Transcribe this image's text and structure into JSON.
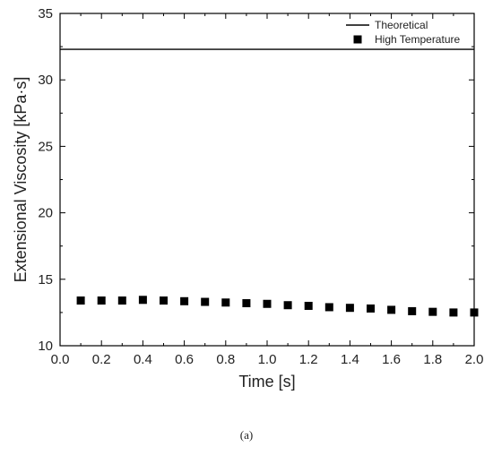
{
  "chart_data": {
    "type": "scatter",
    "xlabel": "Time [s]",
    "ylabel": "Extensional Viscosity [kPa·s]",
    "xlim": [
      0.0,
      2.0
    ],
    "ylim": [
      10,
      35
    ],
    "x_ticks": [
      "0.0",
      "0.2",
      "0.4",
      "0.6",
      "0.8",
      "1.0",
      "1.2",
      "1.4",
      "1.6",
      "1.8",
      "2.0"
    ],
    "y_ticks": [
      "10",
      "15",
      "20",
      "25",
      "30",
      "35"
    ],
    "grid": false,
    "legend_position": "top-right",
    "series": [
      {
        "name": "Theoretical",
        "type": "line",
        "color": "#000000",
        "x": [
          0.0,
          2.0
        ],
        "y": [
          32.3,
          32.3
        ]
      },
      {
        "name": "High Temperature",
        "type": "scatter",
        "marker": "square",
        "color": "#000000",
        "x": [
          0.1,
          0.2,
          0.3,
          0.4,
          0.5,
          0.6,
          0.7,
          0.8,
          0.9,
          1.0,
          1.1,
          1.2,
          1.3,
          1.4,
          1.5,
          1.6,
          1.7,
          1.8,
          1.9,
          2.0
        ],
        "y": [
          13.4,
          13.4,
          13.4,
          13.45,
          13.4,
          13.35,
          13.3,
          13.25,
          13.2,
          13.15,
          13.05,
          13.0,
          12.9,
          12.85,
          12.8,
          12.7,
          12.6,
          12.55,
          12.5,
          12.5
        ]
      }
    ]
  },
  "caption": "(a)"
}
